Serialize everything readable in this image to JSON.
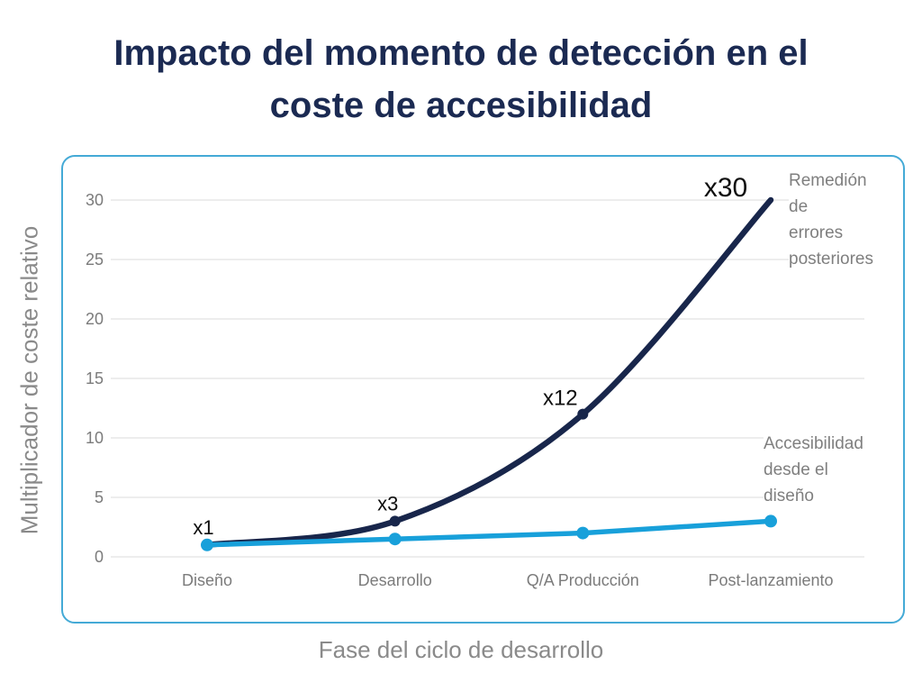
{
  "title": {
    "text": "Impacto del momento de detección en el coste de accesibilidad"
  },
  "colors": {
    "background": "#ffffff",
    "title": "#1b2a52",
    "remediation_line": "#18264b",
    "accessibility_line": "#18a0da",
    "card_border": "#44aad6",
    "gridline": "#e7e7e7",
    "axis_title_text": "#8a8a8a",
    "tick_text": "#7b7b7b",
    "annotation_text": "#0f0f0f",
    "legend_text": "#7f7f7f"
  },
  "chart_data": {
    "type": "line",
    "title": "Impacto del momento de detección en el coste de accesibilidad",
    "xlabel": "Fase del ciclo de desarrollo",
    "ylabel": "Multiplicador de coste relativo",
    "categories": [
      "Diseño",
      "Desarrollo",
      "Q/A Producción",
      "Post-lanzamiento"
    ],
    "yticks": [
      0,
      5,
      10,
      15,
      20,
      25,
      30
    ],
    "ylim": [
      0,
      30
    ],
    "grid": "horizontal",
    "legend_position": "inside-right",
    "series": [
      {
        "name": "Remedión de errores posteriores",
        "values": [
          1,
          3,
          12,
          30
        ],
        "point_labels": [
          "x1",
          "x3",
          "x12",
          "x30"
        ],
        "line_style": "smooth-curve",
        "color": "#18264b"
      },
      {
        "name": "Accesibilidad desde el diseño",
        "values": [
          1,
          1.5,
          2,
          3
        ],
        "point_labels": [],
        "line_style": "straight",
        "color": "#18a0da"
      }
    ]
  },
  "legend": {
    "remediation": {
      "lines": [
        "Remedión",
        "de",
        "errores",
        "posteriores"
      ]
    },
    "accessibility": {
      "lines": [
        "Accesibilidad",
        "desde el",
        "diseño"
      ]
    }
  }
}
